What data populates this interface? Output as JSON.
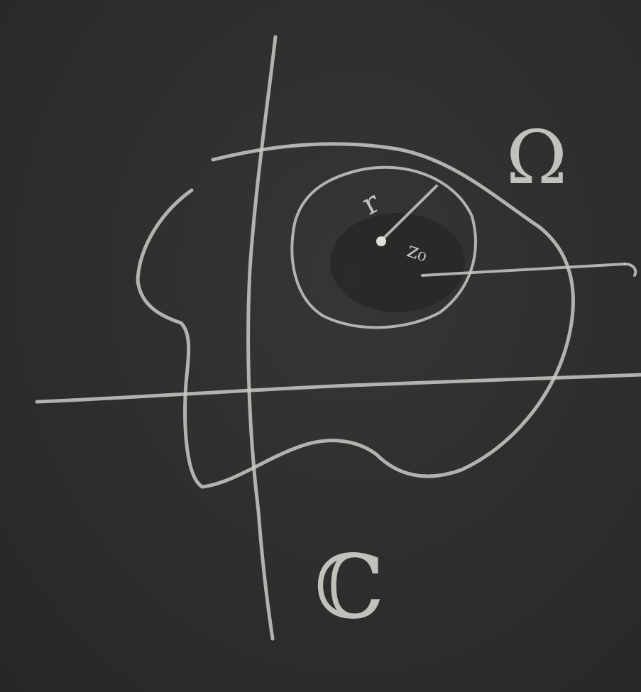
{
  "diagram": {
    "domain_label": "Ω",
    "plane_label": "ℂ",
    "radius_label": "r",
    "center_label": "z₀"
  },
  "colors": {
    "board": "#2c2d2c",
    "chalk": "#c9c9c4"
  }
}
